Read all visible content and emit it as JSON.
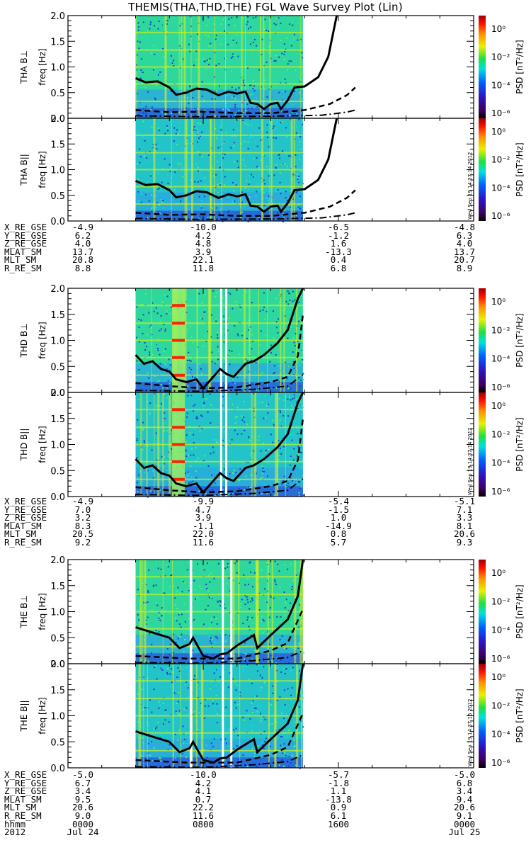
{
  "title": "THEMIS(THA,THD,THE) FGL Wave Survey Plot (Lin)",
  "chart_data": [
    {
      "type": "heatmap",
      "probe": "THA",
      "panels": [
        {
          "ylabel_top": "THA B⊥",
          "ylabel_bottom": "freq [Hz]"
        },
        {
          "ylabel_top": "THA B||",
          "ylabel_bottom": "freq [Hz]"
        }
      ],
      "ylim": [
        0.0,
        2.0
      ],
      "yticks": [
        "0.0",
        "0.5",
        "1.0",
        "1.5",
        "2.0"
      ],
      "data_span_hours": [
        4.0,
        13.9
      ],
      "gaps_hours": [],
      "solid_curve": [
        [
          4.0,
          0.78
        ],
        [
          4.6,
          0.7
        ],
        [
          5.3,
          0.72
        ],
        [
          6.0,
          0.6
        ],
        [
          6.4,
          0.46
        ],
        [
          7.0,
          0.5
        ],
        [
          7.6,
          0.58
        ],
        [
          8.2,
          0.56
        ],
        [
          8.9,
          0.45
        ],
        [
          9.5,
          0.52
        ],
        [
          10.0,
          0.48
        ],
        [
          10.5,
          0.52
        ],
        [
          10.8,
          0.3
        ],
        [
          11.2,
          0.28
        ],
        [
          11.6,
          0.18
        ],
        [
          12.0,
          0.28
        ],
        [
          12.4,
          0.3
        ],
        [
          12.6,
          0.18
        ],
        [
          13.0,
          0.35
        ],
        [
          13.4,
          0.6
        ],
        [
          14.0,
          0.62
        ],
        [
          14.8,
          0.8
        ],
        [
          15.4,
          1.2
        ],
        [
          15.9,
          2.0
        ]
      ],
      "dashed_curve": [
        [
          4.0,
          0.16
        ],
        [
          6.0,
          0.12
        ],
        [
          8.0,
          0.13
        ],
        [
          10.0,
          0.1
        ],
        [
          12.0,
          0.1
        ],
        [
          14.0,
          0.16
        ],
        [
          15.5,
          0.28
        ],
        [
          16.5,
          0.45
        ],
        [
          17.0,
          0.6
        ]
      ],
      "dashdot_curve": [
        [
          4.0,
          0.05
        ],
        [
          8.0,
          0.03
        ],
        [
          12.0,
          0.04
        ],
        [
          15.0,
          0.06
        ],
        [
          16.5,
          0.12
        ],
        [
          17.0,
          0.16
        ]
      ],
      "colorbar": {
        "label": "PSD [nT²/Hz]",
        "ticks": [
          "10⁰",
          "10⁻²",
          "10⁻⁴",
          "10⁻⁶"
        ]
      },
      "timestamp": "Wed Sep 19 14:37:14 2012",
      "orbit": {
        "names": [
          "X_RE_GSE",
          "Y_RE_GSE",
          "Z_RE_GSE",
          "MLAT_SM",
          "MLT_SM",
          "R_RE_SM"
        ],
        "columns": [
          [
            "-4.9",
            "6.2",
            "4.0",
            "13.7",
            "20.8",
            "8.8"
          ],
          [
            "-10.0",
            "4.2",
            "4.8",
            "3.9",
            "22.1",
            "11.8"
          ],
          [
            "-6.5",
            "-1.2",
            "1.6",
            "-13.3",
            "0.4",
            "6.8"
          ],
          [
            "-4.8",
            "6.3",
            "4.0",
            "13.7",
            "20.7",
            "8.9"
          ]
        ]
      }
    },
    {
      "type": "heatmap",
      "probe": "THD",
      "panels": [
        {
          "ylabel_top": "THD B⊥",
          "ylabel_bottom": "freq [Hz]"
        },
        {
          "ylabel_top": "THD B||",
          "ylabel_bottom": "freq [Hz]"
        }
      ],
      "ylim": [
        0.0,
        2.0
      ],
      "yticks": [
        "0.0",
        "0.5",
        "1.0",
        "1.5",
        "2.0"
      ],
      "data_span_hours": [
        4.0,
        13.9
      ],
      "gaps_hours": [
        [
          9.0,
          9.1
        ],
        [
          9.3,
          9.4
        ]
      ],
      "solid_curve": [
        [
          4.0,
          0.72
        ],
        [
          4.5,
          0.55
        ],
        [
          5.0,
          0.6
        ],
        [
          5.5,
          0.45
        ],
        [
          6.0,
          0.4
        ],
        [
          6.4,
          0.25
        ],
        [
          7.0,
          0.2
        ],
        [
          7.6,
          0.25
        ],
        [
          8.0,
          0.08
        ],
        [
          8.6,
          0.3
        ],
        [
          9.0,
          0.45
        ],
        [
          9.4,
          0.35
        ],
        [
          9.8,
          0.3
        ],
        [
          10.5,
          0.55
        ],
        [
          11.0,
          0.6
        ],
        [
          11.6,
          0.72
        ],
        [
          12.4,
          0.95
        ],
        [
          13.0,
          1.2
        ],
        [
          13.6,
          1.8
        ],
        [
          13.9,
          2.0
        ]
      ],
      "dashed_curve": [
        [
          4.0,
          0.18
        ],
        [
          6.0,
          0.12
        ],
        [
          8.0,
          0.08
        ],
        [
          10.0,
          0.1
        ],
        [
          12.0,
          0.2
        ],
        [
          13.0,
          0.3
        ],
        [
          13.6,
          0.7
        ],
        [
          13.9,
          1.5
        ]
      ],
      "dashdot_curve": [
        [
          4.0,
          0.04
        ],
        [
          8.0,
          0.02
        ],
        [
          11.0,
          0.06
        ],
        [
          13.0,
          0.12
        ],
        [
          13.9,
          0.34
        ]
      ],
      "colorbar": {
        "label": "PSD [nT²/Hz]",
        "ticks": [
          "10⁰",
          "10⁻²",
          "10⁻⁴",
          "10⁻⁶"
        ]
      },
      "timestamp": "Wed Sep 19 14:37:14 2012",
      "orbit": {
        "names": [
          "X_RE_GSE",
          "Y_RE_GSE",
          "Z_RE_GSE",
          "MLAT_SM",
          "MLT_SM",
          "R_RE_SM"
        ],
        "columns": [
          [
            "-4.9",
            "7.0",
            "3.2",
            "8.3",
            "20.5",
            "9.2"
          ],
          [
            "-9.9",
            "4.7",
            "3.9",
            "-1.1",
            "22.0",
            "11.6"
          ],
          [
            "-5.4",
            "-1.5",
            "1.0",
            "-14.9",
            "0.8",
            "5.7"
          ],
          [
            "-5.1",
            "7.1",
            "3.3",
            "8.1",
            "20.6",
            "9.3"
          ]
        ]
      }
    },
    {
      "type": "heatmap",
      "probe": "THE",
      "panels": [
        {
          "ylabel_top": "THE B⊥",
          "ylabel_bottom": "freq [Hz]"
        },
        {
          "ylabel_top": "THE B||",
          "ylabel_bottom": "freq [Hz]"
        }
      ],
      "ylim": [
        0.0,
        2.0
      ],
      "yticks": [
        "0.0",
        "0.5",
        "1.0",
        "1.5",
        "2.0"
      ],
      "data_span_hours": [
        4.0,
        13.9
      ],
      "gaps_hours": [
        [
          7.2,
          7.35
        ],
        [
          9.1,
          9.2
        ],
        [
          9.6,
          9.7
        ]
      ],
      "solid_curve": [
        [
          4.0,
          0.7
        ],
        [
          5.0,
          0.6
        ],
        [
          6.0,
          0.5
        ],
        [
          6.6,
          0.3
        ],
        [
          7.2,
          0.38
        ],
        [
          7.4,
          0.5
        ],
        [
          8.0,
          0.15
        ],
        [
          8.6,
          0.1
        ],
        [
          9.0,
          0.18
        ],
        [
          9.4,
          0.2
        ],
        [
          10.0,
          0.35
        ],
        [
          11.0,
          0.55
        ],
        [
          11.2,
          0.3
        ],
        [
          12.0,
          0.55
        ],
        [
          13.0,
          0.85
        ],
        [
          13.6,
          1.3
        ],
        [
          13.9,
          2.0
        ]
      ],
      "dashed_curve": [
        [
          4.0,
          0.15
        ],
        [
          7.0,
          0.1
        ],
        [
          10.0,
          0.1
        ],
        [
          12.0,
          0.25
        ],
        [
          13.0,
          0.4
        ],
        [
          13.9,
          1.05
        ]
      ],
      "dashdot_curve": [
        [
          4.0,
          0.02
        ],
        [
          8.0,
          0.01
        ],
        [
          11.0,
          0.06
        ],
        [
          13.0,
          0.12
        ],
        [
          13.9,
          0.25
        ]
      ],
      "colorbar": {
        "label": "PSD [nT²/Hz]",
        "ticks": [
          "10⁰",
          "10⁻²",
          "10⁻⁴",
          "10⁻⁶"
        ]
      },
      "timestamp": "Wed Sep 19 14:37:15 2012",
      "orbit": {
        "names": [
          "X_RE_GSE",
          "Y_RE_GSE",
          "Z_RE_GSE",
          "MLAT_SM",
          "MLT_SM",
          "R_RE_SM",
          "hhmm",
          "2012"
        ],
        "columns": [
          [
            "-5.0",
            "6.7",
            "3.4",
            "9.5",
            "20.6",
            "9.0",
            "0000",
            "Jul 24"
          ],
          [
            "-10.0",
            "4.2",
            "4.1",
            "0.7",
            "22.2",
            "11.6",
            "0800",
            ""
          ],
          [
            "-5.7",
            "-1.8",
            "1.1",
            "-13.8",
            "0.9",
            "6.1",
            "1600",
            ""
          ],
          [
            "-5.0",
            "6.8",
            "3.4",
            "9.4",
            "20.6",
            "9.1",
            "0000",
            "Jul 25"
          ]
        ]
      }
    }
  ],
  "xlim_hours": [
    0,
    24
  ],
  "colors": {
    "bg_cyan": "#19c8c8",
    "bg_green": "#44e07a",
    "line_yellow": "#e8f000",
    "low_blue": "#2040e0",
    "red_band": "#ff2000"
  }
}
